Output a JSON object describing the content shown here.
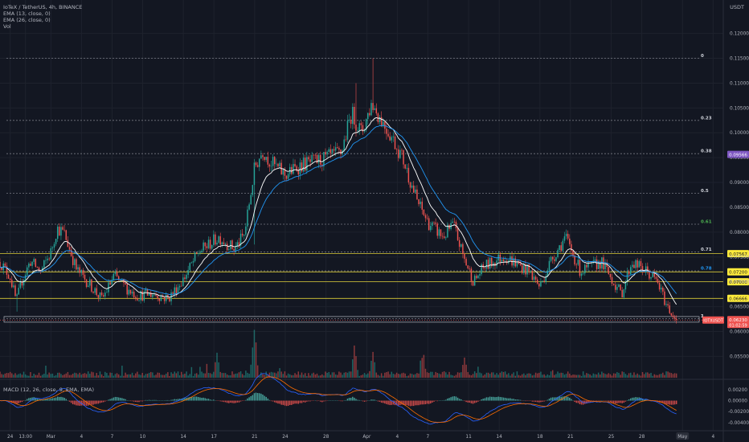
{
  "header": {
    "symbol_line": "IoTeX / TetherUS, 4h, BINANCE",
    "ema1_label": "EMA (13, close, 0)",
    "ema2_label": "EMA (26, close, 0)",
    "vol_label": "Vol",
    "currency": "USDT"
  },
  "macd": {
    "label": "MACD (12, 26, close, 9, EMA, EMA)"
  },
  "price_axis": {
    "ticks": [
      "0.12000",
      "0.11500",
      "0.11000",
      "0.10500",
      "0.10000",
      "0.09500",
      "0.09000",
      "0.08500",
      "0.08000",
      "0.07500",
      "0.07000",
      "0.06500",
      "0.06000",
      "0.05500"
    ],
    "tick_values": [
      0.12,
      0.115,
      0.11,
      0.105,
      0.1,
      0.095,
      0.09,
      0.085,
      0.08,
      0.075,
      0.07,
      0.065,
      0.06,
      0.055
    ]
  },
  "macd_axis": {
    "ticks": [
      "0.00200",
      "0.00000",
      "-0.00200",
      "-0.00400"
    ],
    "tick_values": [
      0.002,
      0.0,
      -0.002,
      -0.004
    ]
  },
  "time_axis": {
    "labels": [
      "24",
      "13:00",
      "Mar",
      "4",
      "7",
      "10",
      "14",
      "17",
      "21",
      "24",
      "28",
      "Apr",
      "4",
      "7",
      "11",
      "14",
      "18",
      "21",
      "25",
      "28",
      "May",
      "4"
    ],
    "positions": [
      0,
      1.5,
      4,
      7,
      10,
      13,
      17,
      20,
      24,
      27,
      31,
      35,
      38,
      41,
      45,
      48,
      52,
      55,
      59,
      62,
      66,
      69
    ]
  },
  "fib_levels": [
    {
      "label": "0",
      "price": 0.115
    },
    {
      "label": "0.23",
      "price": 0.1025
    },
    {
      "label": "0.38",
      "price": 0.0958
    },
    {
      "label": "0.5",
      "price": 0.0878
    },
    {
      "label": "0.61",
      "price": 0.0816
    },
    {
      "label": "0.71",
      "price": 0.076
    },
    {
      "label": "0.78",
      "price": 0.0722
    },
    {
      "label": "1",
      "price": 0.0626
    }
  ],
  "horizontal_levels": [
    {
      "label": "0.07567",
      "price": 0.07567,
      "color": "#ffeb3b"
    },
    {
      "label": "0.07200",
      "price": 0.072,
      "color": "#ffeb3b"
    },
    {
      "label": "0.07000",
      "price": 0.07,
      "color": "#ffeb3b"
    },
    {
      "label": "0.06666",
      "price": 0.06666,
      "color": "#ffeb3b"
    }
  ],
  "badges": {
    "ema_value": "0.09566",
    "symbol_tag": "IOTXUSDT",
    "last_price": "0.06230",
    "countdown": "01:02:59"
  },
  "chart_data": {
    "type": "candlestick",
    "title": "IoTeX / TetherUS, 4h, BINANCE",
    "ylim": [
      0.0515,
      0.1235
    ],
    "x_range_days": [
      -1,
      70
    ],
    "price_path": [
      {
        "day": -1.0,
        "price": 0.074
      },
      {
        "day": 0.0,
        "price": 0.071
      },
      {
        "day": 0.6,
        "price": 0.066
      },
      {
        "day": 1.2,
        "price": 0.0705
      },
      {
        "day": 2.0,
        "price": 0.0742
      },
      {
        "day": 3.0,
        "price": 0.072
      },
      {
        "day": 4.0,
        "price": 0.076
      },
      {
        "day": 4.6,
        "price": 0.0808
      },
      {
        "day": 5.3,
        "price": 0.0798
      },
      {
        "day": 6.5,
        "price": 0.0725
      },
      {
        "day": 8.0,
        "price": 0.069
      },
      {
        "day": 9.0,
        "price": 0.0664
      },
      {
        "day": 10.2,
        "price": 0.0712
      },
      {
        "day": 11.5,
        "price": 0.0686
      },
      {
        "day": 12.5,
        "price": 0.0672
      },
      {
        "day": 14.0,
        "price": 0.0676
      },
      {
        "day": 15.5,
        "price": 0.0666
      },
      {
        "day": 17.0,
        "price": 0.0705
      },
      {
        "day": 18.5,
        "price": 0.076
      },
      {
        "day": 20.5,
        "price": 0.079
      },
      {
        "day": 22.0,
        "price": 0.0766
      },
      {
        "day": 23.0,
        "price": 0.0795
      },
      {
        "day": 24.0,
        "price": 0.093
      },
      {
        "day": 24.8,
        "price": 0.0965
      },
      {
        "day": 25.6,
        "price": 0.094
      },
      {
        "day": 27.0,
        "price": 0.0915
      },
      {
        "day": 28.5,
        "price": 0.0935
      },
      {
        "day": 30.5,
        "price": 0.0945
      },
      {
        "day": 32.5,
        "price": 0.096
      },
      {
        "day": 33.5,
        "price": 0.104
      },
      {
        "day": 34.5,
        "price": 0.1
      },
      {
        "day": 35.5,
        "price": 0.106
      },
      {
        "day": 36.3,
        "price": 0.103
      },
      {
        "day": 37.5,
        "price": 0.099
      },
      {
        "day": 38.5,
        "price": 0.095
      },
      {
        "day": 40.0,
        "price": 0.086
      },
      {
        "day": 41.0,
        "price": 0.082
      },
      {
        "day": 42.5,
        "price": 0.079
      },
      {
        "day": 43.5,
        "price": 0.0816
      },
      {
        "day": 44.5,
        "price": 0.075
      },
      {
        "day": 45.5,
        "price": 0.07
      },
      {
        "day": 46.5,
        "price": 0.073
      },
      {
        "day": 48.5,
        "price": 0.0752
      },
      {
        "day": 51.0,
        "price": 0.072
      },
      {
        "day": 52.0,
        "price": 0.069
      },
      {
        "day": 53.0,
        "price": 0.074
      },
      {
        "day": 54.5,
        "price": 0.079
      },
      {
        "day": 56.0,
        "price": 0.072
      },
      {
        "day": 58.0,
        "price": 0.074
      },
      {
        "day": 60.0,
        "price": 0.0675
      },
      {
        "day": 61.0,
        "price": 0.074
      },
      {
        "day": 62.5,
        "price": 0.072
      },
      {
        "day": 63.5,
        "price": 0.07
      },
      {
        "day": 64.5,
        "price": 0.065
      },
      {
        "day": 65.4,
        "price": 0.0623
      }
    ],
    "candle_count": 400,
    "volume_spikes": [
      {
        "day": 24.0,
        "relative": 1.0
      },
      {
        "day": 23.9,
        "relative": 0.75
      },
      {
        "day": 33.8,
        "relative": 0.6
      },
      {
        "day": 35.6,
        "relative": 0.45
      },
      {
        "day": 20.3,
        "relative": 0.42
      },
      {
        "day": 40.5,
        "relative": 0.38
      },
      {
        "day": 44.6,
        "relative": 0.32
      }
    ]
  }
}
